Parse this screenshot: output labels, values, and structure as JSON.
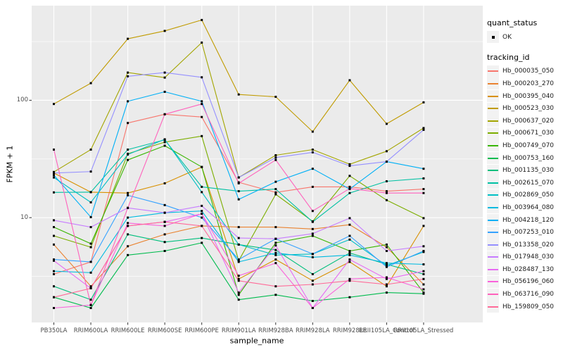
{
  "figure": {
    "background": "#ffffff",
    "panel_background": "#EBEBEB",
    "gridline_color": "#ffffff",
    "point_color": "#000000",
    "axis_text_color": "#4D4D4D"
  },
  "y_axis": {
    "label": "FPKM + 1",
    "ticks": [
      {
        "label": "100",
        "value": 100
      },
      {
        "label": "10",
        "value": 10
      }
    ]
  },
  "x_axis": {
    "label": "sample_name"
  },
  "legend": {
    "quant_title": "quant_status",
    "quant_item": "OK",
    "tracking_title": "tracking_id"
  },
  "chart_data": {
    "type": "line",
    "title": "",
    "xlabel": "sample_name",
    "ylabel": "FPKM + 1",
    "y_scale": "log10",
    "ylim": [
      1.28,
      640
    ],
    "y_major_gridlines": [
      10,
      100
    ],
    "y_minor_gridlines": [
      3.162,
      31.62,
      316.2
    ],
    "grid": true,
    "legend_position": "right",
    "point_shape": "filled-black-square",
    "quant_status": "OK",
    "categories": [
      "PB350LA",
      "RRIM600LA",
      "RRIM600LE",
      "RRIM600SE",
      "RRIM600PE",
      "RRIM901LA",
      "RRIM928BA",
      "RRIM928LA",
      "RRIM928LE",
      "RRII105LA_Control",
      "RRII105LA_Stressed"
    ],
    "series": [
      {
        "name": "Hb_000035_050",
        "color": "#F8766D",
        "values": [
          3.3,
          4.2,
          64,
          76,
          72,
          20,
          16.4,
          18.3,
          18.3,
          16.8,
          17.5
        ]
      },
      {
        "name": "Hb_000203_270",
        "color": "#EA8331",
        "values": [
          5.9,
          2.6,
          5.7,
          7.2,
          8.5,
          8.3,
          8.3,
          8.0,
          8.7,
          5.6,
          2.7
        ]
      },
      {
        "name": "Hb_000395_040",
        "color": "#D89000",
        "values": [
          24,
          16.5,
          16.2,
          19.6,
          27,
          3.0,
          4.4,
          2.9,
          4.2,
          2.6,
          8.5
        ]
      },
      {
        "name": "Hb_000523_030",
        "color": "#C09B00",
        "values": [
          93,
          140,
          334,
          390,
          483,
          112,
          107,
          54,
          148,
          63,
          96
        ]
      },
      {
        "name": "Hb_000637_020",
        "color": "#A3A500",
        "values": [
          24.5,
          38,
          172,
          156,
          310,
          22,
          34,
          38,
          28.5,
          36.8,
          58
        ]
      },
      {
        "name": "Hb_000671_030",
        "color": "#7CAE00",
        "values": [
          7.0,
          5.6,
          35,
          44,
          49.5,
          4.3,
          15.8,
          9.3,
          22.7,
          14.1,
          9.9
        ]
      },
      {
        "name": "Hb_000749_070",
        "color": "#39B600",
        "values": [
          8.3,
          6.0,
          31,
          41,
          27,
          2.2,
          6.1,
          7.0,
          5.2,
          5.9,
          2.3
        ]
      },
      {
        "name": "Hb_000753_160",
        "color": "#00BB4E",
        "values": [
          2.1,
          1.7,
          4.8,
          5.2,
          6.1,
          2.0,
          2.2,
          1.95,
          2.1,
          2.3,
          2.25
        ]
      },
      {
        "name": "Hb_001135_030",
        "color": "#00BF7D",
        "values": [
          2.6,
          2.0,
          7.2,
          6.2,
          6.7,
          5.9,
          5.3,
          3.3,
          5.0,
          4.0,
          3.3
        ]
      },
      {
        "name": "Hb_002615_070",
        "color": "#00C1A3",
        "values": [
          16.4,
          16.5,
          38,
          46,
          18.3,
          16.8,
          17.5,
          9.2,
          16.2,
          20.4,
          21.6
        ]
      },
      {
        "name": "Hb_002869_050",
        "color": "#00BFC4",
        "values": [
          22,
          13.5,
          34.5,
          46.5,
          16.5,
          5.9,
          4.8,
          4.9,
          6.5,
          3.9,
          5.1
        ]
      },
      {
        "name": "Hb_003964_080",
        "color": "#00BAE0",
        "values": [
          3.5,
          3.4,
          10.0,
          11.0,
          11.4,
          4.2,
          5.0,
          4.6,
          4.8,
          4.1,
          4.0
        ]
      },
      {
        "name": "Hb_004218_120",
        "color": "#00B0F6",
        "values": [
          23,
          10.1,
          98,
          118,
          98,
          14.3,
          20.2,
          26.1,
          17.5,
          30,
          26.1
        ]
      },
      {
        "name": "Hb_007253_010",
        "color": "#35A2FF",
        "values": [
          4.4,
          4.2,
          15.5,
          12.8,
          10.0,
          4.4,
          6.6,
          4.9,
          7.0,
          3.8,
          5.2
        ]
      },
      {
        "name": "Hb_013358_020",
        "color": "#9590FF",
        "values": [
          24,
          24.7,
          160,
          172,
          157,
          22,
          32.5,
          36,
          27.6,
          30,
          56
        ]
      },
      {
        "name": "Hb_017948_030",
        "color": "#C77CFF",
        "values": [
          9.5,
          8.3,
          12.1,
          11.0,
          12.6,
          6.7,
          6.6,
          7.3,
          9.9,
          5.2,
          5.7
        ]
      },
      {
        "name": "Hb_028487_130",
        "color": "#E76BF3",
        "values": [
          4.3,
          2.5,
          8.5,
          9.2,
          10.8,
          2.3,
          5.8,
          1.7,
          4.4,
          3.0,
          3.5
        ]
      },
      {
        "name": "Hb_056196_060",
        "color": "#FA62DB",
        "values": [
          1.7,
          1.8,
          9.0,
          8.5,
          10.8,
          3.2,
          4.1,
          1.7,
          3.0,
          3.1,
          2.45
        ]
      },
      {
        "name": "Hb_063716_090",
        "color": "#FF62BC",
        "values": [
          38,
          1.8,
          12.1,
          76,
          93,
          19.6,
          31,
          11.4,
          17.7,
          16.2,
          16.2
        ]
      },
      {
        "name": "Hb_159809_050",
        "color": "#FF6A98",
        "values": [
          2.1,
          2.5,
          8.5,
          9.2,
          8.5,
          2.9,
          2.6,
          2.7,
          2.9,
          2.7,
          3.0
        ]
      }
    ]
  }
}
